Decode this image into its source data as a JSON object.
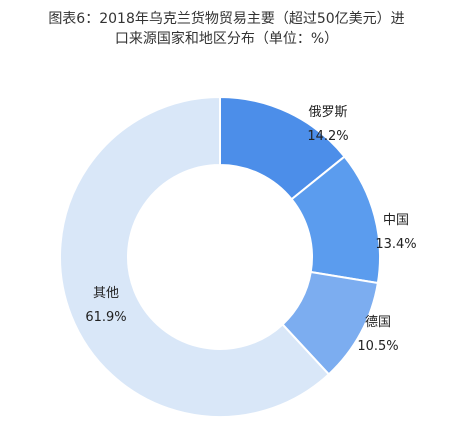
{
  "title_line1": "图表6：2018年乌克兰货物贸易主要（超过50亿美元）进",
  "title_line2": "口来源国家和地区分布（单位：%）",
  "chart_data": {
    "type": "pie",
    "title": "图表6：2018年乌克兰货物贸易主要（超过50亿美元）进口来源国家和地区分布（单位：%）",
    "categories": [
      "俄罗斯",
      "中国",
      "德国",
      "其他"
    ],
    "values": [
      14.2,
      13.4,
      10.5,
      61.9
    ],
    "value_labels": [
      "14.2%",
      "13.4%",
      "10.5%",
      "61.9%"
    ],
    "colors": [
      "#4c8ee9",
      "#5b9cee",
      "#7cadf0",
      "#d9e7f8"
    ],
    "legend": "none",
    "donut": true
  }
}
